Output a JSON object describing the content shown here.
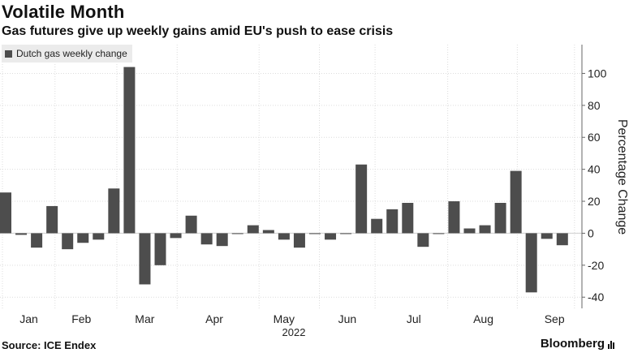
{
  "header": {
    "title": "Volatile Month",
    "subtitle": "Gas futures give up weekly gains amid EU's push to ease crisis"
  },
  "legend": {
    "label": "Dutch gas weekly change"
  },
  "footer": {
    "source": "Source: ICE Endex",
    "brand": "Bloomberg"
  },
  "chart_data": {
    "type": "bar",
    "title": "Volatile Month",
    "subtitle": "Gas futures give up weekly gains amid EU's push to ease crisis",
    "ylabel": "Percentage Change",
    "xlabel": "2022",
    "ylim": [
      -47,
      118
    ],
    "yticks": [
      -40,
      -20,
      0,
      20,
      40,
      60,
      80,
      100
    ],
    "grid": true,
    "legend_position": "top-left",
    "bar_color": "#4d4d4d",
    "month_labels": [
      "Jan",
      "Feb",
      "Mar",
      "Apr",
      "May",
      "Jun",
      "Jul",
      "Aug",
      "Sep"
    ],
    "series": [
      {
        "name": "Dutch gas weekly change",
        "values": [
          25.5,
          -1,
          -9,
          17,
          -10,
          -6,
          -4,
          28,
          104,
          -32,
          -20,
          -3,
          11,
          -7,
          -8,
          -0.5,
          5,
          2,
          -4,
          -9,
          -0.5,
          -4,
          -0.5,
          43,
          9,
          15,
          19,
          -8.5,
          -0.5,
          20,
          3,
          5,
          19,
          39,
          -37,
          -3.5,
          -7.5
        ]
      }
    ]
  }
}
